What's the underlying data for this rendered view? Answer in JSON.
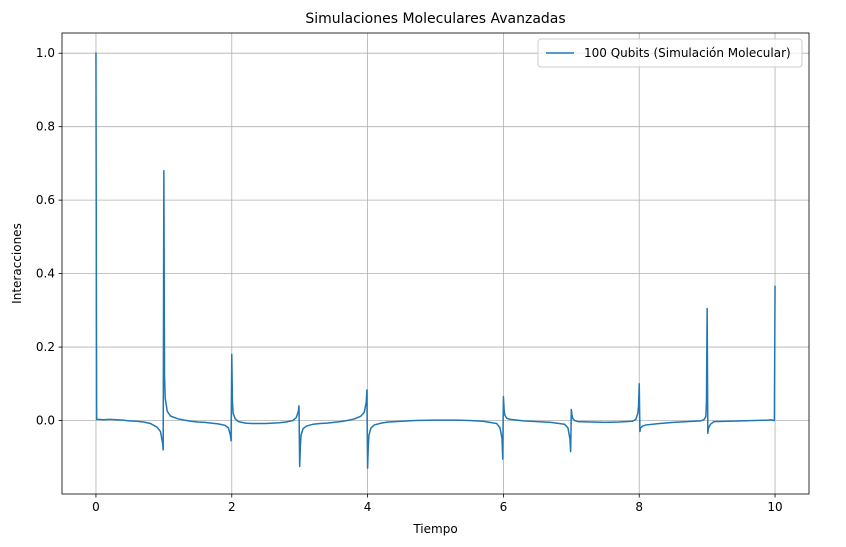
{
  "chart_data": {
    "type": "line",
    "title": "Simulaciones Moleculares Avanzadas",
    "xlabel": "Tiempo",
    "ylabel": "Interacciones",
    "xlim": [
      -0.5,
      10.5
    ],
    "ylim": [
      -0.2,
      1.055
    ],
    "xticks": [
      0,
      2,
      4,
      6,
      8,
      10
    ],
    "xtick_labels": [
      "0",
      "2",
      "4",
      "6",
      "8",
      "10"
    ],
    "yticks": [
      0.0,
      0.2,
      0.4,
      0.6,
      0.8,
      1.0
    ],
    "ytick_labels": [
      "0.0",
      "0.2",
      "0.4",
      "0.6",
      "0.8",
      "1.0"
    ],
    "grid": true,
    "legend_position": "top-right",
    "series": [
      {
        "name": "100 Qubits (Simulación Molecular)",
        "color": "#1f77b4",
        "x": [
          0.0,
          0.01,
          0.03,
          0.1,
          0.2,
          0.3,
          0.4,
          0.5,
          0.6,
          0.7,
          0.8,
          0.9,
          0.95,
          0.98,
          0.99,
          1.0,
          1.01,
          1.02,
          1.05,
          1.1,
          1.2,
          1.3,
          1.4,
          1.5,
          1.6,
          1.7,
          1.8,
          1.9,
          1.95,
          1.98,
          1.99,
          2.0,
          2.01,
          2.02,
          2.05,
          2.1,
          2.2,
          2.3,
          2.4,
          2.5,
          2.6,
          2.7,
          2.8,
          2.9,
          2.95,
          2.98,
          2.99,
          3.0,
          3.01,
          3.02,
          3.05,
          3.1,
          3.2,
          3.3,
          3.4,
          3.5,
          3.6,
          3.7,
          3.8,
          3.9,
          3.95,
          3.98,
          3.99,
          4.0,
          4.01,
          4.02,
          4.05,
          4.1,
          4.2,
          4.3,
          4.5,
          4.7,
          5.0,
          5.3,
          5.5,
          5.7,
          5.9,
          5.95,
          5.98,
          5.99,
          6.0,
          6.01,
          6.02,
          6.05,
          6.1,
          6.2,
          6.3,
          6.5,
          6.7,
          6.9,
          6.95,
          6.98,
          6.99,
          7.0,
          7.01,
          7.02,
          7.05,
          7.1,
          7.3,
          7.5,
          7.7,
          7.9,
          7.95,
          7.98,
          7.99,
          8.0,
          8.01,
          8.02,
          8.05,
          8.1,
          8.3,
          8.5,
          8.7,
          8.9,
          8.95,
          8.98,
          8.99,
          9.0,
          9.01,
          9.02,
          9.05,
          9.1,
          9.3,
          9.5,
          9.7,
          9.9,
          9.95,
          9.98,
          9.99,
          10.0
        ],
        "values": [
          1.0,
          0.003,
          0.003,
          0.002,
          0.003,
          0.002,
          0.001,
          -0.001,
          -0.002,
          -0.004,
          -0.008,
          -0.018,
          -0.03,
          -0.06,
          -0.08,
          0.68,
          0.12,
          0.06,
          0.025,
          0.012,
          0.005,
          0.001,
          -0.002,
          -0.004,
          -0.005,
          -0.007,
          -0.009,
          -0.013,
          -0.02,
          -0.04,
          -0.055,
          0.18,
          0.05,
          0.02,
          0.005,
          -0.003,
          -0.007,
          -0.008,
          -0.008,
          -0.008,
          -0.007,
          -0.006,
          -0.004,
          0.0,
          0.008,
          0.025,
          0.04,
          -0.125,
          -0.07,
          -0.04,
          -0.022,
          -0.015,
          -0.01,
          -0.008,
          -0.007,
          -0.005,
          -0.003,
          0.0,
          0.004,
          0.012,
          0.022,
          0.05,
          0.083,
          -0.13,
          -0.07,
          -0.04,
          -0.02,
          -0.012,
          -0.007,
          -0.004,
          -0.002,
          0.0,
          0.001,
          0.001,
          0.0,
          -0.002,
          -0.008,
          -0.02,
          -0.05,
          -0.105,
          0.065,
          0.03,
          0.015,
          0.006,
          0.003,
          0.001,
          -0.001,
          -0.003,
          -0.005,
          -0.01,
          -0.02,
          -0.05,
          -0.085,
          0.03,
          0.015,
          0.006,
          0.0,
          -0.003,
          -0.004,
          -0.005,
          -0.004,
          -0.002,
          0.003,
          0.02,
          0.04,
          0.1,
          -0.03,
          -0.02,
          -0.015,
          -0.012,
          -0.008,
          -0.005,
          -0.003,
          -0.001,
          0.002,
          0.01,
          0.05,
          0.305,
          -0.035,
          -0.02,
          -0.01,
          -0.003,
          -0.002,
          -0.001,
          0.0,
          0.001,
          0.002,
          0.0,
          0.0,
          0.365
        ]
      }
    ]
  }
}
